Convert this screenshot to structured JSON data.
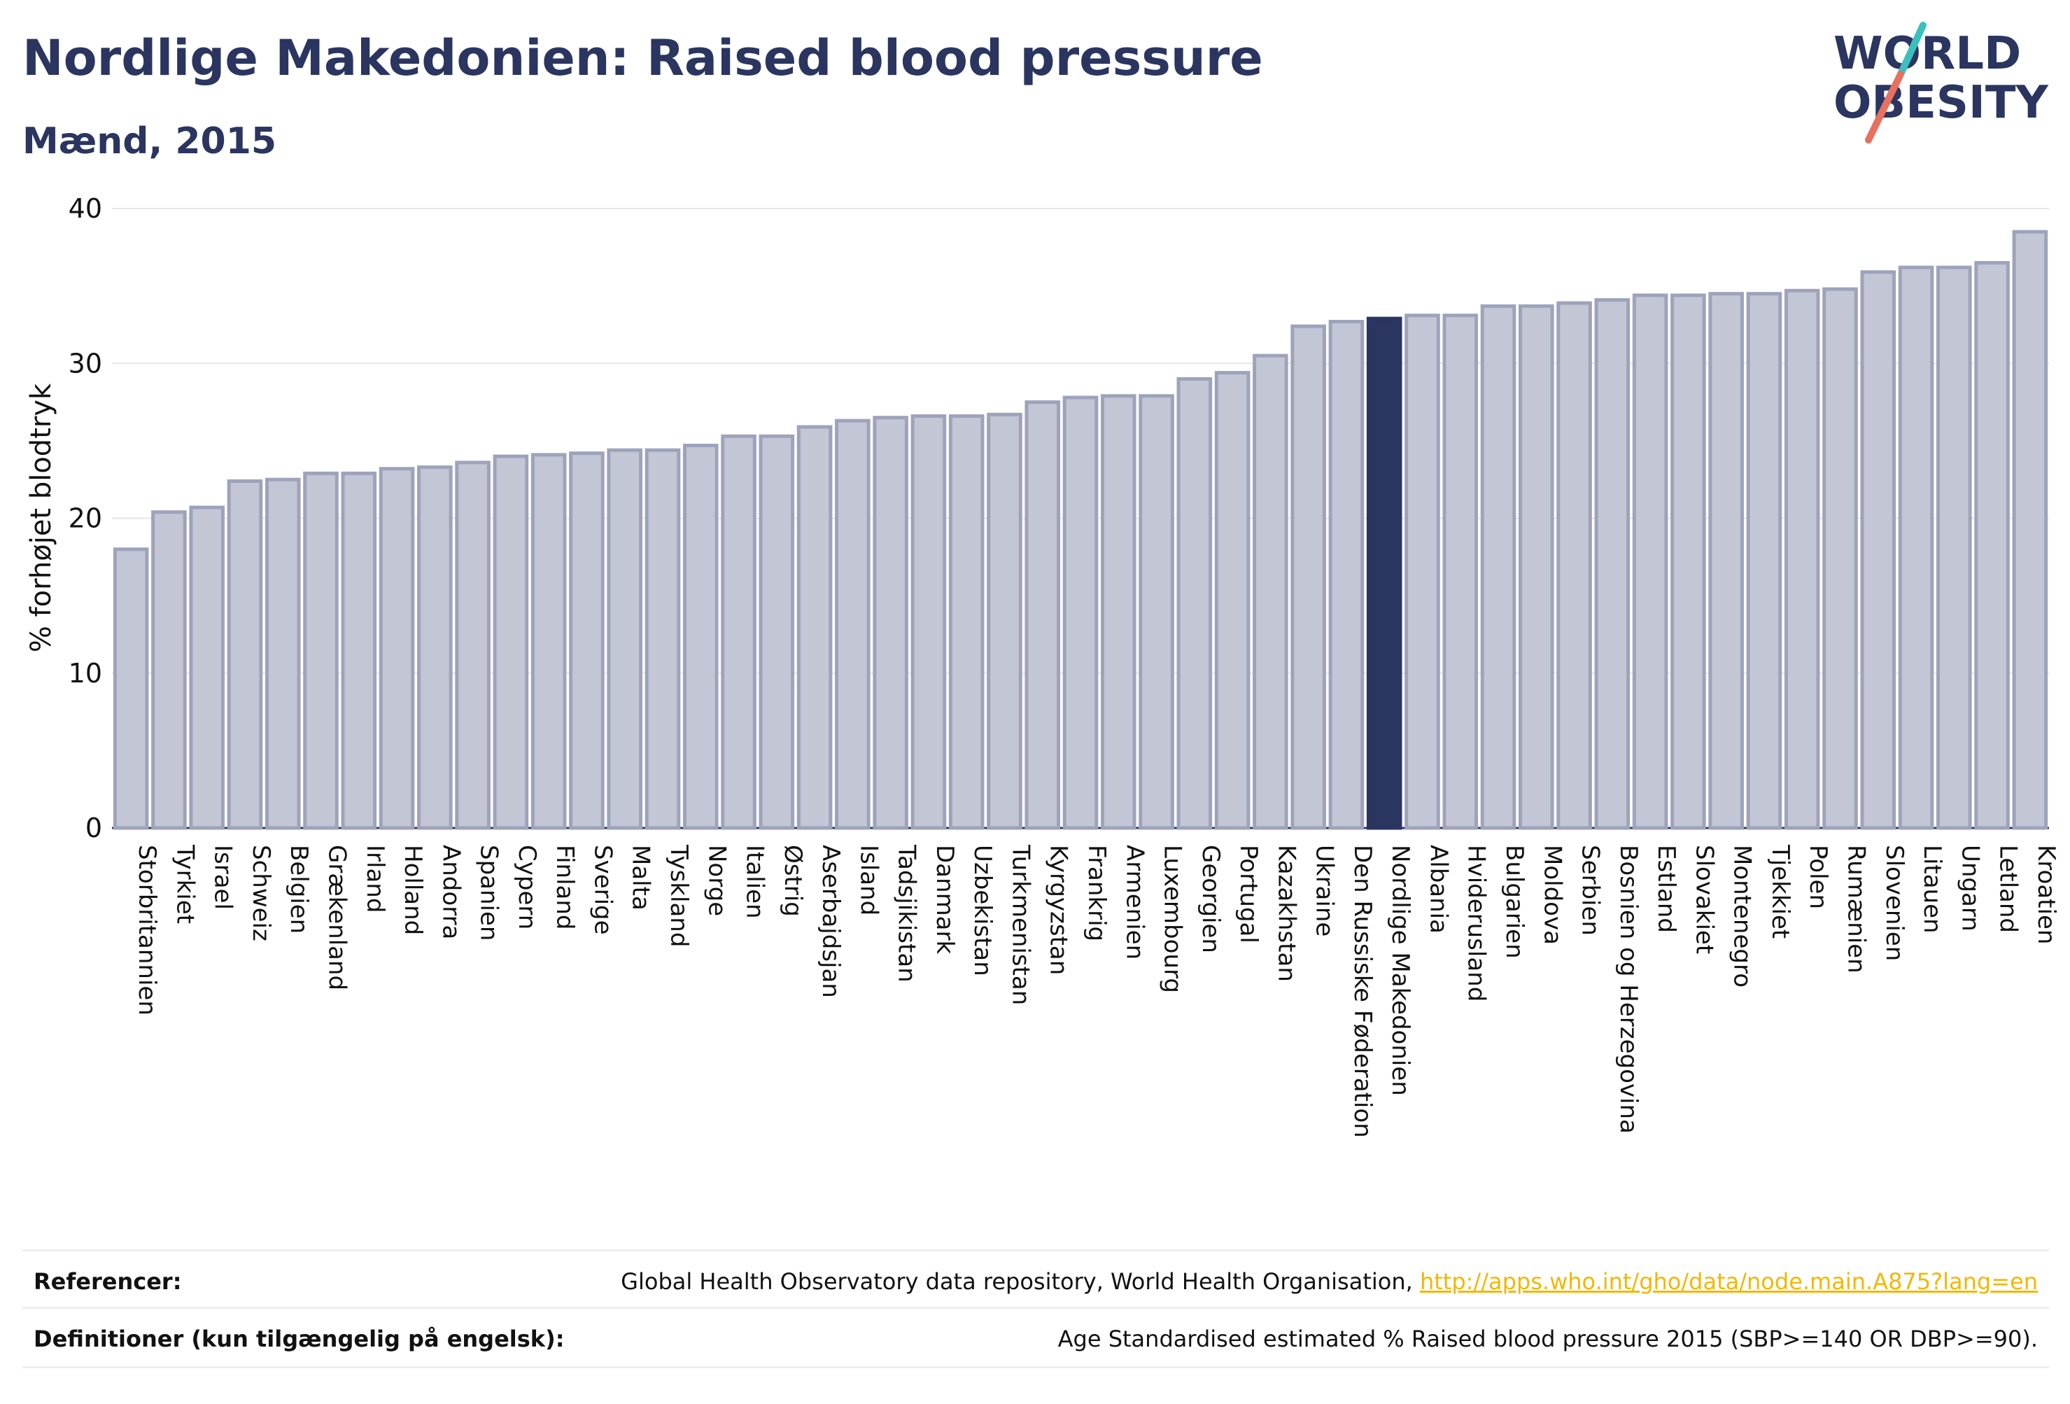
{
  "header": {
    "title": "Nordlige Makedonien: Raised blood pressure",
    "subtitle": "Mænd, 2015"
  },
  "logo": {
    "line1": "WORLD",
    "line2": "OBESITY",
    "accent_colors": [
      "#e8705f",
      "#3bbfbf"
    ]
  },
  "footer": {
    "references_label": "Referencer:",
    "references_text": "Global Health Observatory data repository, World Health Organisation, ",
    "references_link": "http://apps.who.int/gho/data/node.main.A875?lang=en",
    "definitions_label": "Definitioner (kun tilgængelig på engelsk):",
    "definitions_text": "Age Standardised estimated % Raised blood pressure 2015 (SBP>=140 OR DBP>=90)."
  },
  "colors": {
    "bar_fill": "#c3c6d4",
    "bar_stroke": "#9ea3bb",
    "highlight": "#2a3560",
    "text": "#2a3560",
    "grid": "#e6e6e6",
    "link": "#f2b705"
  },
  "chart_data": {
    "type": "bar",
    "title": "Nordlige Makedonien: Raised blood pressure",
    "subtitle": "Mænd, 2015",
    "xlabel": "",
    "ylabel": "% forhøjet blodtryk",
    "ylim": [
      0,
      40
    ],
    "yticks": [
      0,
      10,
      20,
      30,
      40
    ],
    "grid": true,
    "highlight": "Nordlige Makedonien",
    "categories": [
      "Storbritannien",
      "Tyrkiet",
      "Israel",
      "Schweiz",
      "Belgien",
      "Grækenland",
      "Irland",
      "Holland",
      "Andorra",
      "Spanien",
      "Cypern",
      "Finland",
      "Sverige",
      "Malta",
      "Tyskland",
      "Norge",
      "Italien",
      "Østrig",
      "Aserbajdsjan",
      "Island",
      "Tadsjikistan",
      "Danmark",
      "Uzbekistan",
      "Turkmenistan",
      "Kyrgyzstan",
      "Frankrig",
      "Armenien",
      "Luxembourg",
      "Georgien",
      "Portugal",
      "Kazakhstan",
      "Ukraine",
      "Den Russiske Føderation",
      "Nordlige Makedonien",
      "Albania",
      "Hviderusland",
      "Bulgarien",
      "Moldova",
      "Serbien",
      "Bosnien og Herzegovina",
      "Estland",
      "Slovakiet",
      "Montenegro",
      "Tjekkiet",
      "Polen",
      "Rumænien",
      "Slovenien",
      "Litauen",
      "Ungarn",
      "Letland",
      "Kroatien"
    ],
    "values": [
      18.0,
      20.4,
      20.7,
      22.4,
      22.5,
      22.9,
      22.9,
      23.2,
      23.3,
      23.6,
      24.0,
      24.1,
      24.2,
      24.4,
      24.4,
      24.7,
      25.3,
      25.3,
      25.9,
      26.3,
      26.5,
      26.6,
      26.6,
      26.7,
      27.5,
      27.8,
      27.9,
      27.9,
      29.0,
      29.4,
      30.5,
      32.4,
      32.7,
      32.9,
      33.1,
      33.1,
      33.7,
      33.7,
      33.9,
      34.1,
      34.4,
      34.4,
      34.5,
      34.5,
      34.7,
      34.8,
      35.9,
      36.2,
      36.2,
      36.5,
      38.5
    ]
  }
}
